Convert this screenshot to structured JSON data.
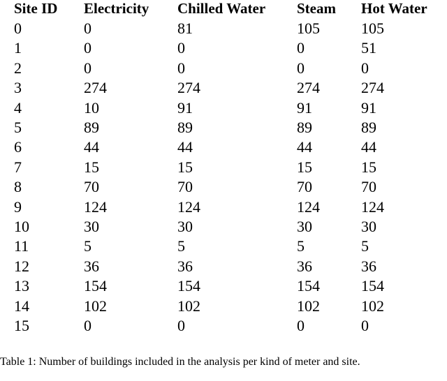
{
  "table": {
    "header": [
      "Site ID",
      "Electricity",
      "Chilled Water",
      "Steam",
      "Hot Water"
    ],
    "rows": [
      [
        0,
        0,
        81,
        105,
        105
      ],
      [
        1,
        0,
        0,
        0,
        51
      ],
      [
        2,
        0,
        0,
        0,
        0
      ],
      [
        3,
        274,
        274,
        274,
        274
      ],
      [
        4,
        10,
        91,
        91,
        91
      ],
      [
        5,
        89,
        89,
        89,
        89
      ],
      [
        6,
        44,
        44,
        44,
        44
      ],
      [
        7,
        15,
        15,
        15,
        15
      ],
      [
        8,
        70,
        70,
        70,
        70
      ],
      [
        9,
        124,
        124,
        124,
        124
      ],
      [
        10,
        30,
        30,
        30,
        30
      ],
      [
        11,
        5,
        5,
        5,
        5
      ],
      [
        12,
        36,
        36,
        36,
        36
      ],
      [
        13,
        154,
        154,
        154,
        154
      ],
      [
        14,
        102,
        102,
        102,
        102
      ],
      [
        15,
        0,
        0,
        0,
        0
      ]
    ]
  },
  "caption": "Table 1: Number of buildings included in the analysis per kind of meter and site."
}
